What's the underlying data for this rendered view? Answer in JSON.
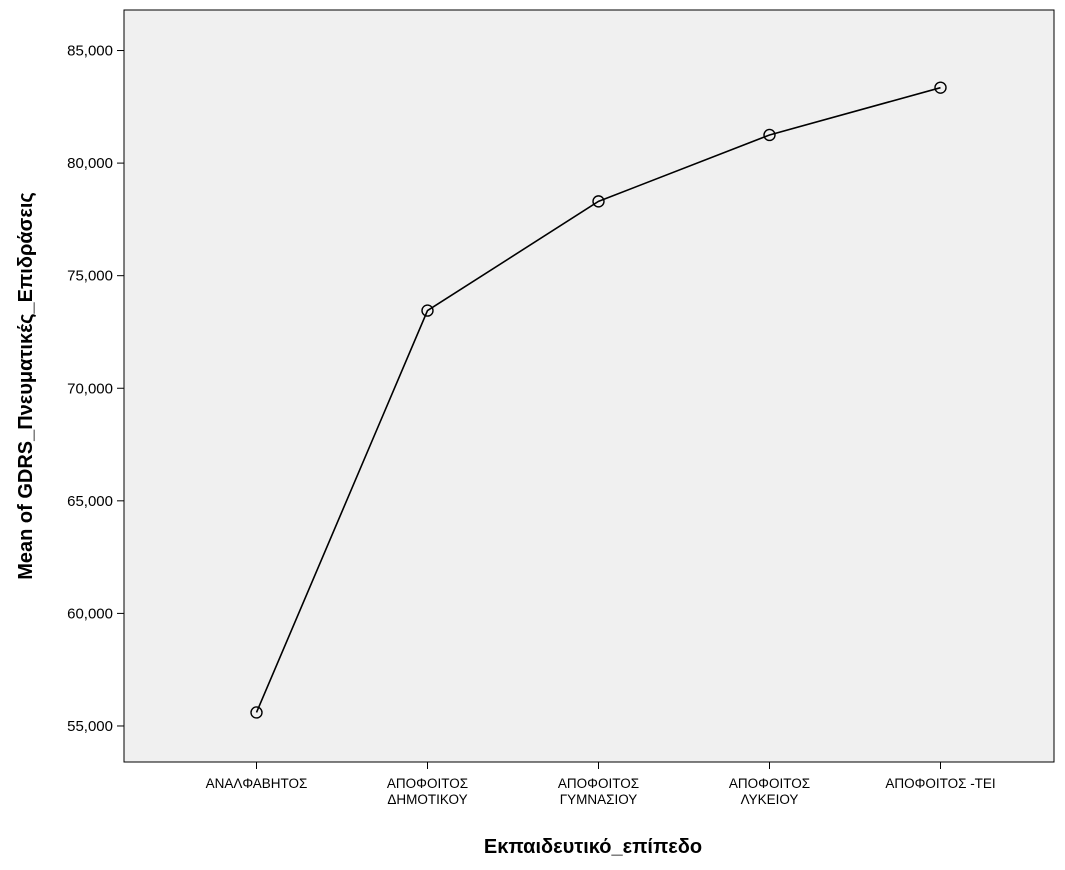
{
  "chart_data": {
    "type": "line",
    "title": "",
    "xlabel": "Εκπαιδευτικό_επίπεδο",
    "ylabel": "Mean of GDRS_Πνευματικές_Επιδράσεις",
    "categories": [
      [
        "ΑΝΑΛΦΑΒΗΤΟΣ"
      ],
      [
        "ΑΠΟΦΟΙΤΟΣ",
        "ΔΗΜΟΤΙΚΟΥ"
      ],
      [
        "ΑΠΟΦΟΙΤΟΣ",
        "ΓΥΜΝΑΣΙΟΥ"
      ],
      [
        "ΑΠΟΦΟΙΤΟΣ",
        "ΛΥΚΕΙΟΥ"
      ],
      [
        "ΑΠΟΦΟΙΤΟΣ -ΤΕΙ"
      ]
    ],
    "series": [
      {
        "values": [
          55.6,
          73.45,
          78.3,
          81.25,
          83.35
        ]
      }
    ],
    "ylim": [
      53.4,
      86.8
    ],
    "yticks": [
      55,
      60,
      65,
      70,
      75,
      80,
      85
    ],
    "ytick_labels": [
      "55,000",
      "60,000",
      "65,000",
      "70,000",
      "75,000",
      "80,000",
      "85,000"
    ],
    "grid": false,
    "plot_background": "#f0f0f0",
    "line_color": "#000000",
    "marker": "open-circle"
  }
}
